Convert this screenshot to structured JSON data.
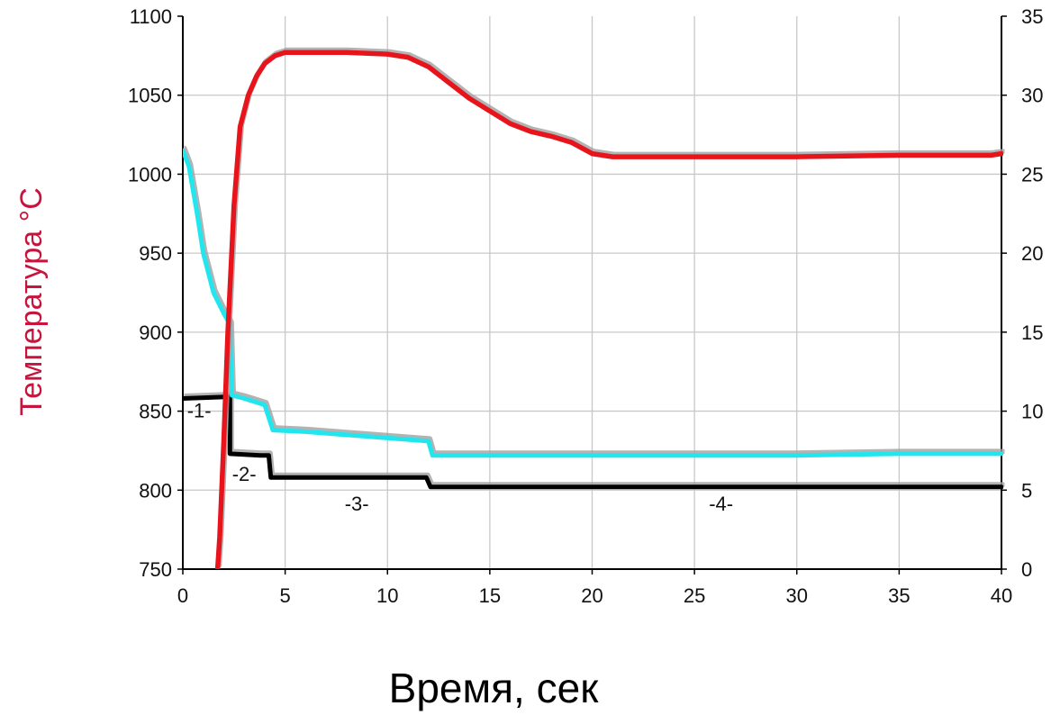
{
  "chart_data": {
    "type": "line",
    "title": "",
    "xlabel": "Время, сек",
    "ylabel": "Температура °С",
    "xlim": [
      0,
      40
    ],
    "ylim": [
      750,
      1100
    ],
    "y2lim": [
      0,
      35
    ],
    "x_ticks": [
      "0",
      "5",
      "10",
      "15",
      "20",
      "25",
      "30",
      "35",
      "40"
    ],
    "y_ticks": [
      "750",
      "800",
      "850",
      "900",
      "950",
      "1000",
      "1050",
      "1100"
    ],
    "y2_ticks": [
      "0",
      "5",
      "10",
      "15",
      "20",
      "25",
      "30",
      "35"
    ],
    "grid": true,
    "colors": {
      "red": "#e8141c",
      "cyan": "#22e6ee",
      "black": "#000000",
      "shadow": "#a0a0a0",
      "ylabel": "#c8143c"
    },
    "series": [
      {
        "color": "red",
        "axis": "left",
        "points": [
          [
            1.7,
            750
          ],
          [
            1.8,
            770
          ],
          [
            2.0,
            830
          ],
          [
            2.2,
            900
          ],
          [
            2.5,
            980
          ],
          [
            2.8,
            1030
          ],
          [
            3.2,
            1050
          ],
          [
            3.6,
            1062
          ],
          [
            4.0,
            1070
          ],
          [
            4.5,
            1075
          ],
          [
            5.0,
            1077
          ],
          [
            6.0,
            1077
          ],
          [
            8.0,
            1077
          ],
          [
            10.0,
            1076
          ],
          [
            11.0,
            1074
          ],
          [
            12.0,
            1068
          ],
          [
            13.0,
            1058
          ],
          [
            14.0,
            1048
          ],
          [
            15.0,
            1040
          ],
          [
            16.0,
            1032
          ],
          [
            17.0,
            1027
          ],
          [
            18.0,
            1024
          ],
          [
            19.0,
            1020
          ],
          [
            20.0,
            1013
          ],
          [
            21.0,
            1011
          ],
          [
            25.0,
            1011
          ],
          [
            30.0,
            1011
          ],
          [
            35.0,
            1012
          ],
          [
            39.5,
            1012
          ],
          [
            40.0,
            1013
          ]
        ]
      },
      {
        "color": "cyan",
        "axis": "left",
        "points": [
          [
            0.0,
            1015
          ],
          [
            0.3,
            1005
          ],
          [
            0.7,
            975
          ],
          [
            1.0,
            950
          ],
          [
            1.5,
            925
          ],
          [
            2.0,
            912
          ],
          [
            2.3,
            905
          ],
          [
            2.4,
            860
          ],
          [
            3.0,
            858
          ],
          [
            4.0,
            854
          ],
          [
            4.4,
            838
          ],
          [
            6.0,
            837
          ],
          [
            8.0,
            835
          ],
          [
            10.0,
            833
          ],
          [
            12.0,
            831
          ],
          [
            12.2,
            822
          ],
          [
            15.0,
            822
          ],
          [
            20.0,
            822
          ],
          [
            25.0,
            822
          ],
          [
            30.0,
            822
          ],
          [
            35.0,
            823
          ],
          [
            40.0,
            823
          ]
        ]
      },
      {
        "color": "black",
        "axis": "left",
        "points": [
          [
            0.0,
            858
          ],
          [
            2.1,
            859
          ],
          [
            2.3,
            859
          ],
          [
            2.3,
            823
          ],
          [
            3.8,
            822
          ],
          [
            4.2,
            822
          ],
          [
            4.3,
            808
          ],
          [
            6.0,
            808
          ],
          [
            8.0,
            808
          ],
          [
            10.0,
            808
          ],
          [
            11.9,
            808
          ],
          [
            12.1,
            802
          ],
          [
            15.0,
            802
          ],
          [
            20.0,
            802
          ],
          [
            25.0,
            802
          ],
          [
            30.0,
            802
          ],
          [
            35.0,
            802
          ],
          [
            40.0,
            802
          ]
        ]
      }
    ],
    "annotations": [
      {
        "text": "-1-",
        "x": 0.8,
        "y": 846
      },
      {
        "text": "-2-",
        "x": 3.0,
        "y": 806
      },
      {
        "text": "-3-",
        "x": 8.5,
        "y": 787
      },
      {
        "text": "-4-",
        "x": 26.3,
        "y": 787
      }
    ]
  }
}
